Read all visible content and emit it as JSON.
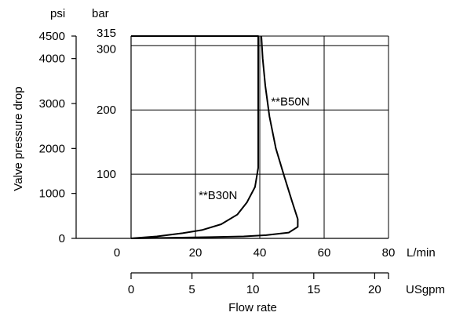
{
  "chart_data": {
    "type": "line",
    "xlabel": "Flow rate",
    "ylabel": "Valve pressure drop",
    "x_axis_lmin": {
      "unit": "L/min",
      "range": [
        0,
        80
      ],
      "ticks": [
        0,
        20,
        40,
        60,
        80
      ]
    },
    "x_axis_usgpm": {
      "unit": "USgpm",
      "range": [
        0,
        21.134
      ],
      "ticks": [
        0,
        5,
        10,
        15,
        20
      ]
    },
    "y_axis_bar": {
      "unit": "bar",
      "range": [
        0,
        315
      ],
      "ticks": [
        100,
        200,
        300,
        315
      ]
    },
    "y_axis_psi": {
      "unit": "psi",
      "range": [
        0,
        4500
      ],
      "ticks": [
        0,
        1000,
        2000,
        3000,
        4000,
        4500
      ]
    },
    "grid": true,
    "series": [
      {
        "name": "**B30N",
        "label_at": {
          "x": 21,
          "y": 67
        },
        "points": [
          [
            0,
            0
          ],
          [
            8,
            3
          ],
          [
            16,
            8
          ],
          [
            22,
            13
          ],
          [
            28,
            22
          ],
          [
            33,
            37
          ],
          [
            36,
            56
          ],
          [
            38.5,
            80
          ],
          [
            39.5,
            110
          ],
          [
            39.5,
            200
          ],
          [
            39.5,
            300
          ],
          [
            39.5,
            315
          ],
          [
            0,
            315
          ]
        ]
      },
      {
        "name": "**B50N",
        "label_at": {
          "x": 43.5,
          "y": 213
        },
        "points": [
          [
            0,
            0
          ],
          [
            12,
            1
          ],
          [
            25,
            2
          ],
          [
            35,
            3
          ],
          [
            42,
            5
          ],
          [
            49,
            9
          ],
          [
            51.8,
            18
          ],
          [
            51.8,
            30
          ],
          [
            50,
            58
          ],
          [
            47.5,
            98
          ],
          [
            45,
            140
          ],
          [
            43,
            190
          ],
          [
            41.7,
            238
          ],
          [
            40.9,
            280
          ],
          [
            40.5,
            315
          ]
        ]
      }
    ]
  }
}
